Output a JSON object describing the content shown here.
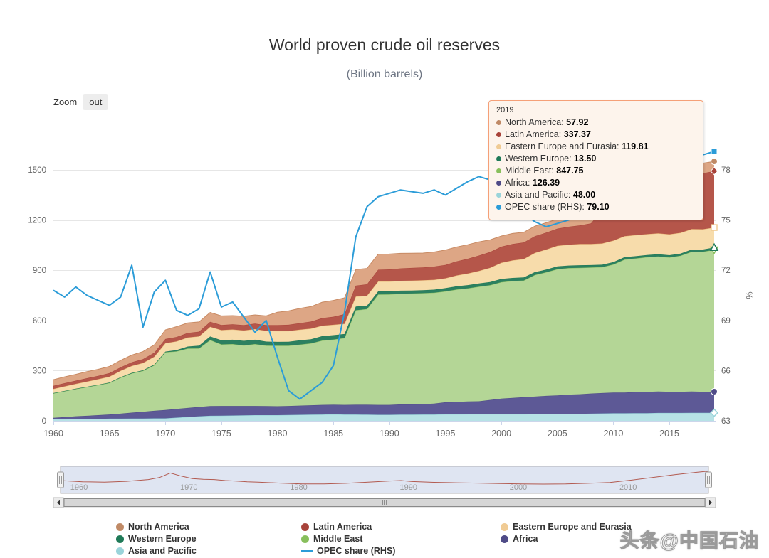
{
  "page": {
    "title": "World proven crude oil reserves",
    "subtitle": "(Billion barrels)",
    "watermark": "头条@中国石油"
  },
  "toolbar": {
    "zoom_label": "Zoom",
    "zoom_button": "out"
  },
  "tooltip": {
    "header": "2019",
    "rows": [
      {
        "label": "North America",
        "value": "57.92"
      },
      {
        "label": "Latin America",
        "value": "337.37"
      },
      {
        "label": "Eastern Europe and Eurasia",
        "value": "119.81"
      },
      {
        "label": "Western Europe",
        "value": "13.50"
      },
      {
        "label": "Middle East",
        "value": "847.75"
      },
      {
        "label": "Africa",
        "value": "126.39"
      },
      {
        "label": "Asia and Pacific",
        "value": "48.00"
      },
      {
        "label": "OPEC share (RHS)",
        "value": "79.10"
      }
    ]
  },
  "axes": {
    "left_ticks": [
      0,
      300,
      600,
      900,
      1200,
      1500
    ],
    "right_ticks": [
      63,
      66,
      69,
      72,
      75,
      78
    ],
    "right_axis_label": "%",
    "x_ticks": [
      1960,
      1965,
      1970,
      1975,
      1980,
      1985,
      1990,
      1995,
      2000,
      2005,
      2010,
      2015
    ]
  },
  "navigator": {
    "labels": [
      1960,
      1970,
      1980,
      1990,
      2000,
      2010
    ],
    "line_color": "#b25a50",
    "mask_color": "#dfe5f2"
  },
  "chart_data": {
    "type": "area",
    "title": "World proven crude oil reserves",
    "subtitle": "(Billion barrels)",
    "stacked": true,
    "grid": true,
    "legend_position": "bottom",
    "ylim_left": [
      0,
      1500
    ],
    "ylim_right": [
      63,
      78
    ],
    "ylabel_right": "%",
    "years": [
      1960,
      1961,
      1962,
      1963,
      1964,
      1965,
      1966,
      1967,
      1968,
      1969,
      1970,
      1971,
      1972,
      1973,
      1974,
      1975,
      1976,
      1977,
      1978,
      1979,
      1980,
      1981,
      1982,
      1983,
      1984,
      1985,
      1986,
      1987,
      1988,
      1989,
      1990,
      1991,
      1992,
      1993,
      1994,
      1995,
      1996,
      1997,
      1998,
      1999,
      2000,
      2001,
      2002,
      2003,
      2004,
      2005,
      2006,
      2007,
      2008,
      2009,
      2010,
      2011,
      2012,
      2013,
      2014,
      2015,
      2016,
      2017,
      2018,
      2019
    ],
    "stack_order": [
      "Asia and Pacific",
      "Africa",
      "Middle East",
      "Western Europe",
      "Eastern Europe and Eurasia",
      "Latin America",
      "North America"
    ],
    "line_series": "OPEC share (RHS)",
    "legend_order": [
      "North America",
      "Latin America",
      "Eastern Europe and Eurasia",
      "Western Europe",
      "Middle East",
      "Africa",
      "Asia and Pacific",
      "OPEC share (RHS)"
    ],
    "series": [
      {
        "name": "North America",
        "type": "area",
        "color": "#c08a66",
        "fill": "#dda685",
        "line": "#c88a63",
        "marker": "circle",
        "marker_fill": "solid",
        "values": [
          37,
          38,
          38,
          39,
          39,
          40,
          41,
          43,
          45,
          47,
          55,
          62,
          60,
          58,
          56,
          54,
          52,
          53,
          52,
          55,
          77,
          83,
          88,
          90,
          95,
          98,
          97,
          96,
          95,
          93,
          92,
          90,
          88,
          86,
          87,
          89,
          86,
          84,
          82,
          73,
          64,
          63,
          61,
          60,
          59,
          58,
          57,
          58,
          59,
          62,
          66,
          70,
          73,
          75,
          78,
          71,
          66,
          62,
          60,
          57.92
        ]
      },
      {
        "name": "Latin America",
        "type": "area",
        "color": "#a8433a",
        "fill": "#b5564a",
        "line": "#a8433a",
        "marker": "diamond",
        "marker_fill": "solid",
        "values": [
          18,
          19,
          19,
          20,
          20,
          21,
          21,
          22,
          23,
          24,
          25,
          26,
          27,
          28,
          30,
          31,
          31,
          32,
          33,
          34,
          35,
          37,
          39,
          42,
          45,
          48,
          58,
          65,
          68,
          70,
          72,
          74,
          76,
          77,
          79,
          80,
          84,
          88,
          92,
          94,
          96,
          98,
          99,
          100,
          101,
          103,
          107,
          111,
          123,
          199,
          239,
          325,
          328,
          330,
          332,
          330,
          334,
          336,
          335,
          337.37
        ]
      },
      {
        "name": "Eastern Europe and Eurasia",
        "type": "area",
        "color": "#f0cb94",
        "fill": "#f7dcab",
        "line": "#e8b978",
        "marker": "square",
        "marker_fill": "hollow",
        "values": [
          25,
          27,
          29,
          31,
          33,
          35,
          38,
          41,
          44,
          47,
          50,
          52,
          54,
          56,
          58,
          60,
          61,
          62,
          63,
          64,
          65,
          64,
          64,
          63,
          63,
          62,
          61,
          60,
          60,
          59,
          59,
          59,
          59,
          59,
          59,
          59,
          65,
          70,
          75,
          85,
          97,
          105,
          110,
          115,
          120,
          123,
          125,
          127,
          126,
          127,
          128,
          126,
          126,
          125,
          125,
          125,
          124,
          122,
          121,
          119.81
        ]
      },
      {
        "name": "Western Europe",
        "type": "area",
        "color": "#1f7a58",
        "fill": "#2c8060",
        "line": "#1f7a58",
        "marker": "triangle",
        "marker_fill": "hollow",
        "values": [
          2,
          2,
          2,
          2,
          2,
          3,
          3,
          3,
          3,
          4,
          4,
          8,
          12,
          16,
          21,
          25,
          26,
          27,
          26,
          24,
          23,
          24,
          25,
          25,
          26,
          26,
          24,
          22,
          20,
          19,
          18,
          18,
          18,
          18,
          18,
          19,
          19,
          19,
          19,
          19,
          19,
          18,
          18,
          17,
          16,
          16,
          15,
          15,
          14,
          14,
          14,
          14,
          13,
          13,
          13,
          13,
          13,
          13,
          13,
          13.5
        ]
      },
      {
        "name": "Middle East",
        "type": "area",
        "color": "#88bf5c",
        "fill": "#b4d696",
        "line": "#8cbf63",
        "marker": "triangle-down",
        "marker_fill": "hollow",
        "values": [
          146,
          155,
          163,
          172,
          180,
          188,
          215,
          235,
          245,
          272,
          345,
          344,
          355,
          350,
          395,
          368,
          370,
          362,
          370,
          362,
          362,
          360,
          365,
          370,
          385,
          390,
          400,
          565,
          572,
          660,
          661,
          662,
          662,
          663,
          663,
          663,
          672,
          676,
          685,
          686,
          696,
          699,
          698,
          727,
          739,
          755,
          756,
          756,
          754,
          753,
          766,
          795,
          799,
          805,
          808,
          803,
          813,
          836,
          837,
          847.75
        ]
      },
      {
        "name": "Africa",
        "type": "area",
        "color": "#4f4b87",
        "fill": "#5d5996",
        "line": "#4f4b87",
        "marker": "circle",
        "marker_fill": "solid",
        "values": [
          8,
          12,
          16,
          19,
          22,
          25,
          30,
          35,
          40,
          45,
          50,
          52,
          54,
          56,
          58,
          58,
          57,
          56,
          55,
          54,
          53,
          54,
          55,
          56,
          57,
          57,
          57,
          58,
          59,
          59,
          59,
          61,
          62,
          62,
          65,
          72,
          74,
          76,
          77,
          85,
          93,
          97,
          101,
          104,
          108,
          111,
          115,
          117,
          120,
          122,
          124,
          124,
          126,
          127,
          128,
          127,
          127,
          127,
          126,
          126.39
        ]
      },
      {
        "name": "Asia and Pacific",
        "type": "area",
        "color": "#9ad4da",
        "fill": "#b7e2e6",
        "line": "#8ccdd4",
        "marker": "diamond",
        "marker_fill": "hollow",
        "values": [
          10,
          10,
          11,
          11,
          12,
          13,
          13,
          14,
          14,
          15,
          15,
          19,
          23,
          27,
          30,
          31,
          32,
          33,
          34,
          34,
          34,
          35,
          36,
          37,
          38,
          39,
          38,
          38,
          37,
          36,
          36,
          37,
          37,
          38,
          38,
          39,
          39,
          40,
          40,
          40,
          40,
          40,
          40,
          41,
          41,
          41,
          42,
          42,
          43,
          44,
          45,
          45,
          46,
          46,
          47,
          47,
          47,
          48,
          48,
          48
        ]
      },
      {
        "name": "OPEC share (RHS)",
        "type": "line",
        "axis": "right",
        "color": "#2b9cd8",
        "marker": "square",
        "marker_fill": "solid",
        "values": [
          70.8,
          70.4,
          71.0,
          70.5,
          70.2,
          69.9,
          70.4,
          72.3,
          68.6,
          70.7,
          71.4,
          69.6,
          69.3,
          69.7,
          71.9,
          69.8,
          70.1,
          69.2,
          68.3,
          69.0,
          66.8,
          64.8,
          64.3,
          64.8,
          65.3,
          66.3,
          69.5,
          74.0,
          75.8,
          76.4,
          76.6,
          76.8,
          76.7,
          76.6,
          76.8,
          76.5,
          76.9,
          77.3,
          77.6,
          77.4,
          77.2,
          76.6,
          75.4,
          74.9,
          74.6,
          74.8,
          75.0,
          75.4,
          76.2,
          77.1,
          77.4,
          78.2,
          78.6,
          78.4,
          78.3,
          78.4,
          78.5,
          78.7,
          78.9,
          79.1
        ]
      }
    ],
    "navigator_profile": [
      [
        1960,
        0.5
      ],
      [
        1962,
        0.44
      ],
      [
        1964,
        0.42
      ],
      [
        1966,
        0.46
      ],
      [
        1968,
        0.55
      ],
      [
        1969,
        0.65
      ],
      [
        1970,
        0.88
      ],
      [
        1971,
        0.72
      ],
      [
        1972,
        0.6
      ],
      [
        1973,
        0.56
      ],
      [
        1974,
        0.55
      ],
      [
        1975,
        0.5
      ],
      [
        1976,
        0.47
      ],
      [
        1977,
        0.44
      ],
      [
        1978,
        0.42
      ],
      [
        1980,
        0.37
      ],
      [
        1982,
        0.33
      ],
      [
        1984,
        0.33
      ],
      [
        1986,
        0.36
      ],
      [
        1988,
        0.42
      ],
      [
        1990,
        0.48
      ],
      [
        1991,
        0.5
      ],
      [
        1992,
        0.45
      ],
      [
        1994,
        0.41
      ],
      [
        1996,
        0.39
      ],
      [
        1998,
        0.37
      ],
      [
        2000,
        0.35
      ],
      [
        2002,
        0.33
      ],
      [
        2004,
        0.32
      ],
      [
        2006,
        0.33
      ],
      [
        2008,
        0.36
      ],
      [
        2010,
        0.4
      ],
      [
        2012,
        0.52
      ],
      [
        2014,
        0.66
      ],
      [
        2016,
        0.8
      ],
      [
        2018,
        0.92
      ],
      [
        2019,
        0.97
      ]
    ]
  }
}
